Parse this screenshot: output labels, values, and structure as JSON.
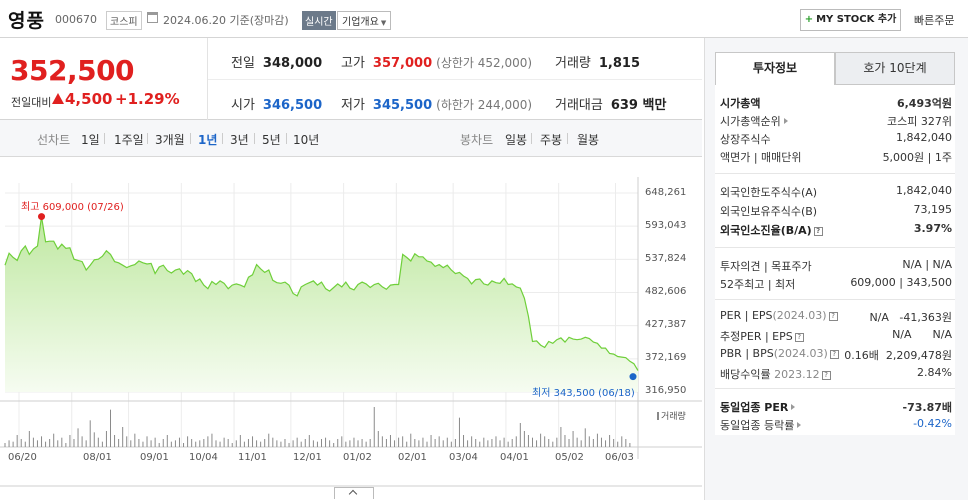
{
  "header": {
    "stock_name": "영풍",
    "stock_code": "000670",
    "market": "코스피",
    "as_of": "2024.06.20 기준(장마감)",
    "realtime": "실시간",
    "company_info": "기업개요",
    "my_stock": "MY STOCK 추가",
    "quick_order": "빠른주문"
  },
  "price": {
    "current": "352,500",
    "change_label": "전일대비",
    "change_amount": "4,500",
    "change_rate": "+1.29%"
  },
  "stats": {
    "prev_close_label": "전일",
    "prev_close": "348,000",
    "high_label": "고가",
    "high": "357,000",
    "upper_limit": "(상한가 452,000)",
    "volume_label": "거래량",
    "volume": "1,815",
    "open_label": "시가",
    "open": "346,500",
    "low_label": "저가",
    "low": "345,500",
    "lower_limit": "(하한가 244,000)",
    "amount_label": "거래대금",
    "amount": "639 백만"
  },
  "tabs": {
    "line_chart": "선차트",
    "periods": [
      "1일",
      "1주일",
      "3개월",
      "1년",
      "3년",
      "5년",
      "10년"
    ],
    "active": "1년",
    "candle_chart": "봉차트",
    "candle_periods": [
      "일봉",
      "주봉",
      "월봉"
    ]
  },
  "colors": {
    "up": "#e0201f",
    "down": "#1c65c8",
    "line": "#6fcf3a"
  },
  "chart_data": {
    "type": "area",
    "title": "",
    "xlabel": "",
    "ylabel": "",
    "x_ticks": [
      "06/20",
      "08/01",
      "09/01",
      "10/04",
      "11/01",
      "12/01",
      "01/02",
      "02/01",
      "03/04",
      "04/01",
      "05/02",
      "06/03"
    ],
    "y_ticks": [
      "648,261",
      "593,043",
      "537,824",
      "482,606",
      "427,387",
      "372,169",
      "316,950"
    ],
    "ylim": [
      316950,
      648261
    ],
    "annotations": {
      "high": "최고 609,000 (07/26)",
      "low": "최저 343,500 (06/18)"
    },
    "volume_legend": "거래량",
    "grid": true,
    "series": [
      {
        "values": [
          528000,
          548000,
          541000,
          536000,
          552000,
          560000,
          546000,
          555000,
          560000,
          609000,
          567000,
          568000,
          568000,
          555000,
          563000,
          556000,
          557000,
          538000,
          536000,
          534000,
          520000,
          528000,
          537000,
          538000,
          543000,
          552000,
          546000,
          534000,
          532000,
          528000,
          524000,
          527000,
          529000,
          535000,
          532000,
          530000,
          531000,
          514000,
          525000,
          528000,
          519000,
          515000,
          520000,
          522000,
          513000,
          519000,
          514000,
          501000,
          505000,
          495000,
          489000,
          501000,
          496000,
          502000,
          498000,
          489000,
          495000,
          497000,
          495000,
          492000,
          508000,
          512000,
          529000,
          522000,
          516000,
          520000,
          503000,
          499000,
          498000,
          500000,
          495000,
          481000,
          477000,
          492000,
          496000,
          499000,
          502000,
          495000,
          500000,
          489000,
          485000,
          491000,
          497000,
          492000,
          500000,
          490000,
          487000,
          496000,
          500000,
          497000,
          491000,
          496000,
          498000,
          492000,
          488000,
          495000,
          496000,
          496000,
          546000,
          541000,
          535000,
          547000,
          542000,
          542000,
          535000,
          533000,
          526000,
          529000,
          524000,
          528000,
          520000,
          514000,
          516000,
          510000,
          506000,
          497000,
          504000,
          505000,
          497000,
          495000,
          502000,
          499000,
          498000,
          506000,
          496000,
          497000,
          492000,
          490000,
          473000,
          443000,
          401000,
          402000,
          395000,
          391000,
          401000,
          398000,
          404000,
          407000,
          400000,
          408000,
          405000,
          404000,
          405000,
          408000,
          406000,
          400000,
          398000,
          390000,
          390000,
          381000,
          380000,
          376000,
          375000,
          374000,
          368000,
          364000,
          352500
        ]
      }
    ],
    "volume_values": [
      3,
      5,
      4,
      9,
      6,
      4,
      12,
      7,
      5,
      8,
      4,
      6,
      10,
      5,
      7,
      3,
      9,
      6,
      14,
      8,
      5,
      20,
      11,
      7,
      4,
      12,
      28,
      9,
      6,
      15,
      8,
      5,
      10,
      6,
      4,
      8,
      5,
      7,
      3,
      6,
      9,
      4,
      5,
      7,
      3,
      8,
      6,
      4,
      5,
      6,
      8,
      10,
      5,
      4,
      7,
      6,
      3,
      5,
      9,
      4,
      6,
      8,
      5,
      4,
      6,
      10,
      7,
      5,
      4,
      6,
      3,
      5,
      7,
      4,
      6,
      9,
      5,
      4,
      6,
      7,
      5,
      3,
      6,
      8,
      4,
      5,
      7,
      5,
      6,
      4,
      6,
      30,
      12,
      8,
      6,
      9,
      5,
      7,
      8,
      4,
      10,
      6,
      5,
      7,
      4,
      9,
      6,
      8,
      5,
      7,
      4,
      6,
      22,
      9,
      5,
      8,
      6,
      4,
      7,
      5,
      6,
      8,
      5,
      7,
      4,
      6,
      8,
      18,
      12,
      9,
      7,
      5,
      10,
      8,
      6,
      4,
      7,
      15,
      9,
      6,
      12,
      7,
      5,
      14,
      8,
      6,
      10,
      7,
      5,
      9,
      6,
      4,
      8,
      6,
      3
    ]
  },
  "side": {
    "tab_active": "투자정보",
    "tab_other": "호가 10단계",
    "rows1": [
      {
        "k": "시가총액",
        "v": "6,493억원",
        "bold": true
      },
      {
        "k": "시가총액순위",
        "v": "코스피 327위",
        "tri": true
      },
      {
        "k": "상장주식수",
        "v": "1,842,040"
      },
      {
        "k": "액면가 | 매매단위",
        "v": "5,000원 | 1주"
      }
    ],
    "rows2": [
      {
        "k": "외국인한도주식수(A)",
        "v": "1,842,040"
      },
      {
        "k": "외국인보유주식수(B)",
        "v": "73,195"
      },
      {
        "k": "외국인소진율(B/A)",
        "v": "3.97%",
        "bold": true,
        "info": true
      }
    ],
    "rows3": [
      {
        "k": "투자의견 | 목표주가",
        "v": "N/A | N/A"
      },
      {
        "k": "52주최고 | 최저",
        "v": "609,000 | 343,500"
      }
    ],
    "per_label": "PER",
    "eps_label": "EPS",
    "eps_period": "(2024.03)",
    "per_value": "N/A",
    "eps_value": "-41,363원",
    "est_per_label": "추정PER",
    "est_eps_label": "EPS",
    "est_per_value": "N/A",
    "est_eps_value": "N/A",
    "pbr_label": "PBR",
    "bps_label": "BPS",
    "bps_period": "(2024.03)",
    "pbr_value": "0.16배",
    "bps_value": "2,209,478원",
    "div_label": "배당수익률",
    "div_period": "2023.12",
    "div_value": "2.84%",
    "industry_per_label": "동일업종 PER",
    "industry_per_value": "-73.87배",
    "industry_rate_label": "동일업종 등락률",
    "industry_rate_value": "-0.42%"
  }
}
